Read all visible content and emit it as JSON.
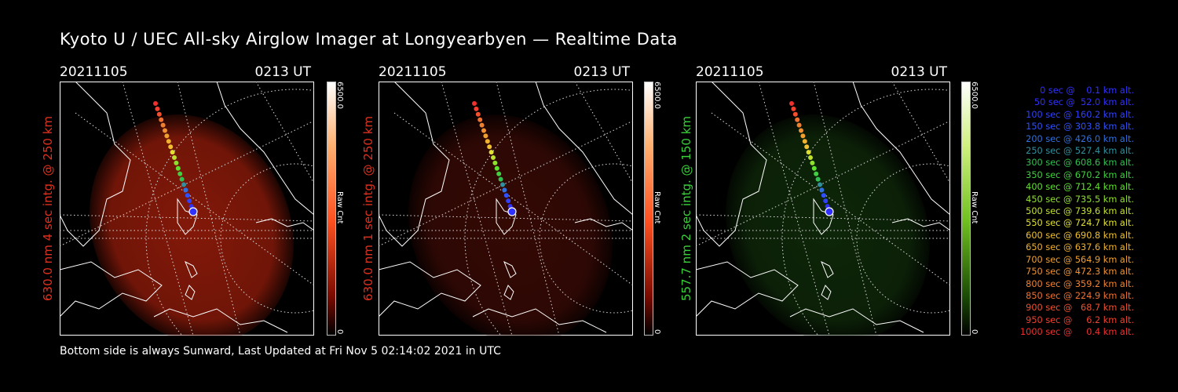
{
  "title": "Kyoto U / UEC All-sky Airglow Imager at Longyearbyen — Realtime Data",
  "panels": [
    {
      "date": "20211105",
      "time": "0213 UT",
      "side_label": "630.0 nm  4 sec intg. @ 250 km",
      "side_color": "#e0301e",
      "cbar_max": "6500.0",
      "cbar_unit": "Raw Cnt",
      "cbar_min": "0",
      "glow": "#8a1a0a",
      "glow_opacity": 0.95,
      "bar_top": "#ff9a55"
    },
    {
      "date": "20211105",
      "time": "0213 UT",
      "side_label": "630.0 nm  1 sec intg. @ 250 km",
      "side_color": "#e0301e",
      "cbar_max": "6500.0",
      "cbar_unit": "Raw Cnt",
      "cbar_min": "0",
      "glow": "#3a0a05",
      "glow_opacity": 0.9,
      "bar_top": "#ff9a55"
    },
    {
      "date": "20211105",
      "time": "0213 UT",
      "side_label": "557.7 nm  2 sec intg. @ 150 km",
      "side_color": "#3ad03a",
      "cbar_max": "6500.0",
      "cbar_unit": "Raw Cnt",
      "cbar_min": "0",
      "glow": "#0f2a0a",
      "glow_opacity": 0.9,
      "bar_top": "#bfe060"
    }
  ],
  "footer": "Bottom side is always Sunward, Last Updated at Fri Nov  5 02:14:02 2021 in UTC",
  "legend": [
    {
      "text": "   0 sec @    0.1 km alt.",
      "color": "#3030ff"
    },
    {
      "text": "  50 sec @  52.0 km alt.",
      "color": "#3030ff"
    },
    {
      "text": " 100 sec @ 160.2 km alt.",
      "color": "#3040ff"
    },
    {
      "text": " 150 sec @ 303.8 km alt.",
      "color": "#3050ff"
    },
    {
      "text": " 200 sec @ 426.0 km alt.",
      "color": "#3070e0"
    },
    {
      "text": " 250 sec @ 527.4 km alt.",
      "color": "#3090a0"
    },
    {
      "text": " 300 sec @ 608.6 km alt.",
      "color": "#30c050"
    },
    {
      "text": " 350 sec @ 670.2 km alt.",
      "color": "#40d040"
    },
    {
      "text": " 400 sec @ 712.4 km alt.",
      "color": "#60e030"
    },
    {
      "text": " 450 sec @ 735.5 km alt.",
      "color": "#90e030"
    },
    {
      "text": " 500 sec @ 739.6 km alt.",
      "color": "#c0e030"
    },
    {
      "text": " 550 sec @ 724.7 km alt.",
      "color": "#e0e030"
    },
    {
      "text": " 600 sec @ 690.8 km alt.",
      "color": "#f0c030"
    },
    {
      "text": " 650 sec @ 637.6 km alt.",
      "color": "#f0b030"
    },
    {
      "text": " 700 sec @ 564.9 km alt.",
      "color": "#f0a030"
    },
    {
      "text": " 750 sec @ 472.3 km alt.",
      "color": "#f09030"
    },
    {
      "text": " 800 sec @ 359.2 km alt.",
      "color": "#f08030"
    },
    {
      "text": " 850 sec @ 224.9 km alt.",
      "color": "#f07030"
    },
    {
      "text": " 900 sec @   68.7 km alt.",
      "color": "#f05030"
    },
    {
      "text": " 950 sec @     6.2 km alt.",
      "color": "#f04030"
    },
    {
      "text": "1000 sec @     0.4 km alt.",
      "color": "#f03030"
    }
  ]
}
